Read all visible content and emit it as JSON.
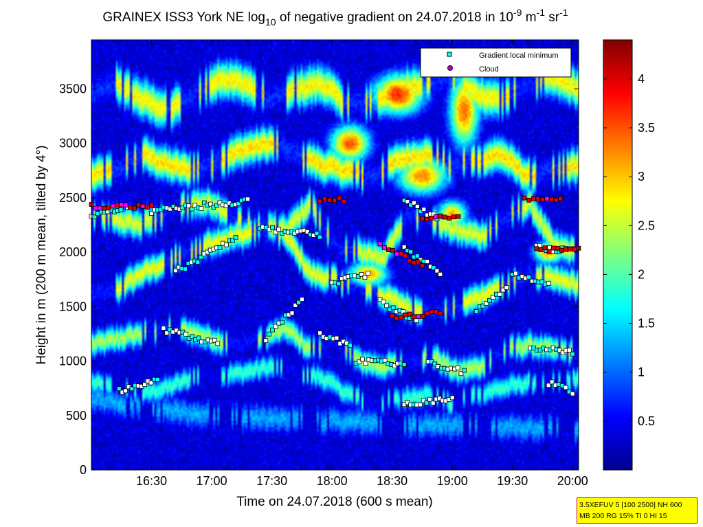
{
  "chart_data": {
    "type": "heatmap",
    "title": {
      "part1": "GRAINEX ISS3 York NE log",
      "sub": "10",
      "part2": " of negative gradient on 24.07.2018 in 10",
      "sup1": "-9",
      "part3": " m",
      "sup2": "-1",
      "part4": " sr",
      "sup3": "-1"
    },
    "xlabel": "Time on 24.07.2018 (600 s mean)",
    "ylabel": "Height in m (200 m mean, tilted by 4°)",
    "x_range_hours": [
      16.0,
      20.05
    ],
    "y_range": [
      0,
      3950
    ],
    "x_ticks": [
      {
        "v": 16.5,
        "label": "16:30"
      },
      {
        "v": 17.0,
        "label": "17:00"
      },
      {
        "v": 17.5,
        "label": "17:30"
      },
      {
        "v": 18.0,
        "label": "18:00"
      },
      {
        "v": 18.5,
        "label": "18:30"
      },
      {
        "v": 19.0,
        "label": "19:00"
      },
      {
        "v": 19.5,
        "label": "19:30"
      },
      {
        "v": 20.0,
        "label": "20:00"
      }
    ],
    "y_ticks": [
      0,
      500,
      1000,
      1500,
      2000,
      2500,
      3000,
      3500
    ],
    "colorbar": {
      "range": [
        0,
        4.4
      ],
      "ticks": [
        0.5,
        1,
        1.5,
        2,
        2.5,
        3,
        3.5,
        4
      ],
      "labels": [
        "0.5",
        "1",
        "1.5",
        "2",
        "2.5",
        "3",
        "3.5",
        "4"
      ],
      "colormap": "jet"
    },
    "legend": {
      "placement": "top-right",
      "entries": [
        {
          "label": "Gradient local minimum",
          "marker": "square",
          "color": "#00ffff"
        },
        {
          "label": "Cloud",
          "marker": "circle",
          "color": "#ff0000"
        }
      ]
    },
    "layers": [
      {
        "type": "band",
        "name": "gradient-min-lowest",
        "start": 16.0,
        "end": 20.05,
        "heights": [
          650,
          600,
          560,
          520,
          500,
          480,
          460,
          450,
          440,
          430,
          420,
          410,
          400,
          390,
          380,
          370
        ],
        "thickness": 260,
        "value": 1.3
      },
      {
        "type": "band",
        "name": "gradient-min-low",
        "start": 16.0,
        "end": 20.05,
        "heights": [
          800,
          750,
          700,
          760,
          850,
          870,
          900,
          950,
          900,
          850,
          700,
          600,
          650,
          700,
          600,
          700,
          750,
          800,
          820,
          840
        ],
        "thickness": 200,
        "value": 1.9
      },
      {
        "type": "band",
        "name": "gradient-min-mid1",
        "start": 16.0,
        "end": 20.05,
        "heights": [
          1150,
          1200,
          1250,
          1300,
          1280,
          1200,
          1150,
          1220,
          1300,
          1100,
          1180,
          1000,
          950,
          1000,
          1050,
          900,
          950,
          1100,
          1150,
          1100,
          1080
        ],
        "thickness": 220,
        "value": 2.4
      },
      {
        "type": "band",
        "name": "gradient-min-mid2",
        "start": 16.0,
        "end": 20.05,
        "heights": [
          1600,
          1650,
          1800,
          1900,
          2000,
          2100,
          2150,
          2200,
          2150,
          1800,
          1750,
          1700,
          1600,
          1500,
          1450,
          1500,
          1600,
          1700,
          1800,
          1750,
          1700
        ],
        "thickness": 240,
        "value": 2.7
      },
      {
        "type": "band",
        "name": "gradient-min-mid3",
        "start": 16.0,
        "end": 20.05,
        "heights": [
          2350,
          2300,
          2250,
          2350,
          2450,
          2450,
          2300,
          2250,
          2200,
          2450,
          2050,
          2000,
          1950,
          2350,
          2300,
          2200,
          2150,
          2300,
          2450,
          2050,
          2000
        ],
        "thickness": 260,
        "value": 2.6
      },
      {
        "type": "band",
        "name": "gradient-min-high",
        "start": 16.0,
        "end": 20.05,
        "heights": [
          2700,
          2750,
          2900,
          2800,
          2750,
          2850,
          2950,
          3000,
          2900,
          2800,
          2750,
          2700,
          2850,
          2900,
          2800,
          2850,
          2900,
          2700,
          2750,
          2800
        ],
        "thickness": 300,
        "value": 2.9
      },
      {
        "type": "band",
        "name": "gradient-min-top",
        "start": 16.0,
        "end": 20.05,
        "heights": [
          3450,
          3550,
          3400,
          3300,
          3450,
          3600,
          3550,
          3400,
          3500,
          3550,
          3350,
          3400,
          3500,
          3550,
          3600,
          3450,
          3400,
          3550,
          3600,
          3500
        ],
        "thickness": 340,
        "value": 2.8
      },
      {
        "type": "blob",
        "name": "cloud-core-1",
        "x": 18.55,
        "y": 3450,
        "rx": 0.25,
        "ry": 220,
        "value": 3.7
      },
      {
        "type": "blob",
        "name": "cloud-core-2",
        "x": 18.15,
        "y": 3000,
        "rx": 0.2,
        "ry": 200,
        "value": 3.5
      },
      {
        "type": "blob",
        "name": "cloud-core-3",
        "x": 19.1,
        "y": 3300,
        "rx": 0.15,
        "ry": 400,
        "value": 3.4
      },
      {
        "type": "blob",
        "name": "cloud-core-4",
        "x": 18.75,
        "y": 2700,
        "rx": 0.25,
        "ry": 200,
        "value": 3.3
      },
      {
        "type": "blob",
        "name": "cloud-core-5",
        "x": 18.3,
        "y": 1800,
        "rx": 0.2,
        "ry": 130,
        "value": 3.2
      },
      {
        "type": "blob",
        "name": "cloud-core-6",
        "x": 19.8,
        "y": 2000,
        "rx": 0.15,
        "ry": 120,
        "value": 3.3
      },
      {
        "type": "blob",
        "name": "cloud-core-7",
        "x": 19.0,
        "y": 2350,
        "rx": 0.15,
        "ry": 150,
        "value": 3.1
      }
    ],
    "scatter_tracks": [
      {
        "name": "minimum-track-1",
        "start": 16.23,
        "end": 16.55,
        "h0": 730,
        "h1": 820
      },
      {
        "name": "minimum-track-2",
        "start": 16.6,
        "end": 17.05,
        "h0": 1290,
        "h1": 1160
      },
      {
        "name": "minimum-track-3",
        "start": 17.45,
        "end": 17.75,
        "h0": 1200,
        "h1": 1560
      },
      {
        "name": "minimum-track-4",
        "start": 17.9,
        "end": 18.15,
        "h0": 1260,
        "h1": 1130
      },
      {
        "name": "minimum-track-5",
        "start": 18.0,
        "end": 18.3,
        "h0": 1720,
        "h1": 1800
      },
      {
        "name": "minimum-track-6",
        "start": 18.4,
        "end": 18.7,
        "h0": 1550,
        "h1": 1370
      },
      {
        "name": "minimum-track-7",
        "start": 18.6,
        "end": 18.9,
        "h0": 2030,
        "h1": 1820
      },
      {
        "name": "minimum-track-8",
        "start": 18.8,
        "end": 19.1,
        "h0": 980,
        "h1": 900
      },
      {
        "name": "minimum-track-9",
        "start": 19.2,
        "end": 19.45,
        "h0": 1450,
        "h1": 1680
      },
      {
        "name": "minimum-track-10",
        "start": 19.5,
        "end": 19.8,
        "h0": 1800,
        "h1": 1700
      },
      {
        "name": "minimum-track-11",
        "start": 19.65,
        "end": 20.0,
        "h0": 1120,
        "h1": 1080
      },
      {
        "name": "minimum-track-12",
        "start": 16.5,
        "end": 17.3,
        "h0": 2380,
        "h1": 2470
      },
      {
        "name": "minimum-track-13",
        "start": 17.4,
        "end": 17.9,
        "h0": 2220,
        "h1": 2160
      },
      {
        "name": "minimum-track-14",
        "start": 16.7,
        "end": 17.2,
        "h0": 1820,
        "h1": 2130
      },
      {
        "name": "minimum-track-15",
        "start": 18.6,
        "end": 18.9,
        "h0": 2480,
        "h1": 2300
      },
      {
        "name": "minimum-track-16",
        "start": 19.7,
        "end": 20.0,
        "h0": 2050,
        "h1": 2010
      },
      {
        "name": "minimum-track-17",
        "start": 18.2,
        "end": 18.6,
        "h0": 1000,
        "h1": 970
      },
      {
        "name": "minimum-track-18",
        "start": 18.6,
        "end": 19.0,
        "h0": 590,
        "h1": 660
      },
      {
        "name": "minimum-track-19",
        "start": 19.8,
        "end": 20.0,
        "h0": 800,
        "h1": 720
      },
      {
        "name": "minimum-track-20",
        "start": 16.0,
        "end": 16.3,
        "h0": 2330,
        "h1": 2420
      }
    ],
    "cloud_tracks": [
      {
        "name": "cloud-track-1",
        "start": 16.0,
        "end": 16.5,
        "h0": 2420,
        "h1": 2420
      },
      {
        "name": "cloud-track-2",
        "start": 17.9,
        "end": 18.1,
        "h0": 2480,
        "h1": 2480
      },
      {
        "name": "cloud-track-3",
        "start": 18.4,
        "end": 18.75,
        "h0": 2060,
        "h1": 1880
      },
      {
        "name": "cloud-track-4",
        "start": 18.5,
        "end": 18.9,
        "h0": 1400,
        "h1": 1450
      },
      {
        "name": "cloud-track-5",
        "start": 19.7,
        "end": 20.05,
        "h0": 2020,
        "h1": 2020
      },
      {
        "name": "cloud-track-6",
        "start": 19.6,
        "end": 19.9,
        "h0": 2480,
        "h1": 2480
      },
      {
        "name": "cloud-track-7",
        "start": 18.75,
        "end": 19.05,
        "h0": 2300,
        "h1": 2330
      }
    ]
  },
  "param_box": {
    "line1": "3.5XEFUV 5 [100 2500] NH 600",
    "line2": "MB 200 RG 15% TI 0 HI 15"
  }
}
